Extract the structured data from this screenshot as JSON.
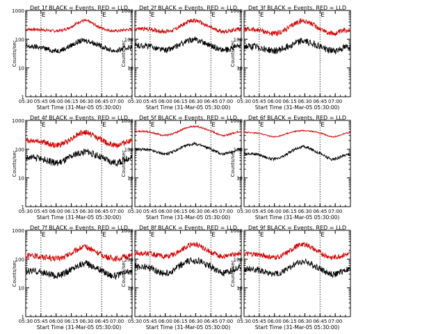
{
  "layout": {
    "rows": 3,
    "cols": 3
  },
  "chart_data": [
    {
      "type": "line",
      "title": "Det 1f BLACK = Events, RED = LLD",
      "xlabel": "Start Time (31-Mar-05 05:30:00)",
      "ylabel": "Counts/sec",
      "yscale": "log",
      "ylim": [
        1,
        1000
      ],
      "xlim_minutes": [
        0,
        105
      ],
      "xtick_labels": [
        "05:30",
        "05:45",
        "06:00",
        "06:15",
        "06:30",
        "06:45",
        "07:00"
      ],
      "ytick_labels": [
        "1",
        "10",
        "100",
        "1000"
      ],
      "markers": [
        "E",
        "E"
      ],
      "marker_times": [
        "05:45",
        "06:45"
      ],
      "series": [
        {
          "color": "#d40000",
          "base": 220,
          "peak": 440,
          "dip": 190,
          "noise": 0.05
        },
        {
          "color": "#000000",
          "base": 55,
          "peak": 90,
          "dip": 38,
          "noise": 0.09
        }
      ]
    },
    {
      "type": "line",
      "title": "Det 2f BLACK = Events, RED = LLD",
      "xlabel": "Start Time (31-Mar-05 05:30:00)",
      "ylabel": "Counts/sec",
      "yscale": "log",
      "ylim": [
        1,
        1000
      ],
      "xlim_minutes": [
        0,
        105
      ],
      "xtick_labels": [
        "05:30",
        "05:45",
        "06:00",
        "06:15",
        "06:30",
        "06:45",
        "07:00"
      ],
      "ytick_labels": [
        "1",
        "10",
        "100",
        "1000"
      ],
      "markers": [
        "E",
        "E"
      ],
      "marker_times": [
        "05:45",
        "06:45"
      ],
      "series": [
        {
          "color": "#d40000",
          "base": 230,
          "peak": 450,
          "dip": 180,
          "noise": 0.07
        },
        {
          "color": "#000000",
          "base": 60,
          "peak": 95,
          "dip": 40,
          "noise": 0.1
        }
      ]
    },
    {
      "type": "line",
      "title": "Det 3f BLACK = Events, RED = LLD",
      "xlabel": "Start Time (31-Mar-05 05:30:00)",
      "ylabel": "Counts/sec",
      "yscale": "log",
      "ylim": [
        1,
        1000
      ],
      "xlim_minutes": [
        0,
        105
      ],
      "xtick_labels": [
        "05:30",
        "05:45",
        "06:00",
        "06:15",
        "06:30",
        "06:45",
        "07:00"
      ],
      "ytick_labels": [
        "1",
        "10",
        "100",
        "1000"
      ],
      "markers": [
        "E",
        "E"
      ],
      "marker_times": [
        "05:45",
        "06:45"
      ],
      "series": [
        {
          "color": "#d40000",
          "base": 220,
          "peak": 430,
          "dip": 150,
          "noise": 0.09
        },
        {
          "color": "#000000",
          "base": 55,
          "peak": 85,
          "dip": 38,
          "noise": 0.12
        }
      ]
    },
    {
      "type": "line",
      "title": "Det 4f BLACK = Events, RED = LLD",
      "xlabel": "Start Time (31-Mar-05 05:30:00)",
      "ylabel": "Counts/sec",
      "yscale": "log",
      "ylim": [
        1,
        1000
      ],
      "xlim_minutes": [
        0,
        105
      ],
      "xtick_labels": [
        "05:30",
        "05:45",
        "06:00",
        "06:15",
        "06:30",
        "06:45",
        "07:00"
      ],
      "ytick_labels": [
        "1",
        "10",
        "100",
        "1000"
      ],
      "markers": [
        "E",
        "E"
      ],
      "marker_times": [
        "05:45",
        "06:45"
      ],
      "series": [
        {
          "color": "#d40000",
          "base": 200,
          "peak": 380,
          "dip": 130,
          "noise": 0.1
        },
        {
          "color": "#000000",
          "base": 50,
          "peak": 80,
          "dip": 32,
          "noise": 0.12
        }
      ]
    },
    {
      "type": "line",
      "title": "Det 5f BLACK = Events, RED = LLD",
      "xlabel": "Start Time (31-Mar-05 05:30:00)",
      "ylabel": "Counts/sec",
      "yscale": "log",
      "ylim": [
        1,
        1000
      ],
      "xlim_minutes": [
        0,
        105
      ],
      "xtick_labels": [
        "05:30",
        "05:45",
        "06:00",
        "06:15",
        "06:30",
        "06:45",
        "07:00"
      ],
      "ytick_labels": [
        "1",
        "10",
        "100",
        "1000"
      ],
      "markers": [
        "E",
        "E"
      ],
      "marker_times": [
        "05:45",
        "06:45"
      ],
      "series": [
        {
          "color": "#d40000",
          "base": 420,
          "peak": 620,
          "dip": 290,
          "noise": 0.03
        },
        {
          "color": "#000000",
          "base": 100,
          "peak": 150,
          "dip": 65,
          "noise": 0.05
        }
      ]
    },
    {
      "type": "line",
      "title": "Det 6f BLACK = Events, RED = LLD",
      "xlabel": "Start Time (31-Mar-05 05:30:00)",
      "ylabel": "Counts/sec",
      "yscale": "log",
      "ylim": [
        1,
        1000
      ],
      "xlim_minutes": [
        0,
        105
      ],
      "xtick_labels": [
        "05:30",
        "05:45",
        "06:00",
        "06:15",
        "06:30",
        "06:45",
        "07:00"
      ],
      "ytick_labels": [
        "1",
        "10",
        "100",
        "1000"
      ],
      "markers": [
        "E",
        "E"
      ],
      "marker_times": [
        "05:45",
        "06:45"
      ],
      "series": [
        {
          "color": "#d40000",
          "base": 380,
          "peak": 440,
          "dip": 260,
          "noise": 0.02
        },
        {
          "color": "#000000",
          "base": 70,
          "peak": 120,
          "dip": 42,
          "noise": 0.05
        }
      ]
    },
    {
      "type": "line",
      "title": "Det 7f BLACK = Events, RED = LLD",
      "xlabel": "Start Time (31-Mar-05 05:30:00)",
      "ylabel": "Counts/sec",
      "yscale": "log",
      "ylim": [
        1,
        1000
      ],
      "xlim_minutes": [
        0,
        105
      ],
      "xtick_labels": [
        "05:30",
        "05:45",
        "06:00",
        "06:15",
        "06:30",
        "06:45",
        "07:00"
      ],
      "ytick_labels": [
        "1",
        "10",
        "100",
        "1000"
      ],
      "markers": [
        "E",
        "E"
      ],
      "marker_times": [
        "05:45",
        "06:45"
      ],
      "series": [
        {
          "color": "#d40000",
          "base": 130,
          "peak": 260,
          "dip": 100,
          "noise": 0.1
        },
        {
          "color": "#000000",
          "base": 38,
          "peak": 70,
          "dip": 25,
          "noise": 0.12
        }
      ]
    },
    {
      "type": "line",
      "title": "Det 8f BLACK = Events, RED = LLD",
      "xlabel": "Start Time (31-Mar-05 05:30:00)",
      "ylabel": "Counts/sec",
      "yscale": "log",
      "ylim": [
        1,
        1000
      ],
      "xlim_minutes": [
        0,
        105
      ],
      "xtick_labels": [
        "05:30",
        "05:45",
        "06:00",
        "06:15",
        "06:30",
        "06:45",
        "07:00"
      ],
      "ytick_labels": [
        "1",
        "10",
        "100",
        "1000"
      ],
      "markers": [
        "E",
        "E"
      ],
      "marker_times": [
        "05:45",
        "06:45"
      ],
      "series": [
        {
          "color": "#d40000",
          "base": 160,
          "peak": 330,
          "dip": 120,
          "noise": 0.09
        },
        {
          "color": "#000000",
          "base": 55,
          "peak": 90,
          "dip": 30,
          "noise": 0.12
        }
      ]
    },
    {
      "type": "line",
      "title": "Det 9f BLACK = Events, RED = LLD",
      "xlabel": "Start Time (31-Mar-05 05:30:00)",
      "ylabel": "Counts/sec",
      "yscale": "log",
      "ylim": [
        1,
        1000
      ],
      "xlim_minutes": [
        0,
        105
      ],
      "xtick_labels": [
        "05:30",
        "05:45",
        "06:00",
        "06:15",
        "06:30",
        "06:45",
        "07:00"
      ],
      "ytick_labels": [
        "1",
        "10",
        "100",
        "1000"
      ],
      "markers": [
        "E",
        "E"
      ],
      "marker_times": [
        "05:45",
        "06:45"
      ],
      "series": [
        {
          "color": "#d40000",
          "base": 150,
          "peak": 330,
          "dip": 110,
          "noise": 0.09
        },
        {
          "color": "#000000",
          "base": 45,
          "peak": 80,
          "dip": 28,
          "noise": 0.11
        }
      ]
    }
  ]
}
